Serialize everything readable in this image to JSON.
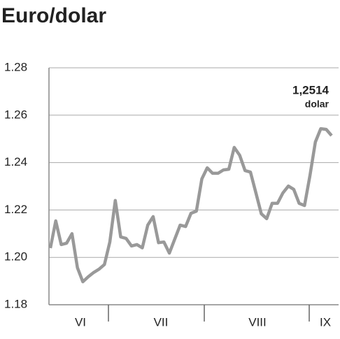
{
  "chart_data": {
    "type": "line",
    "title": "Euro/dolar",
    "month_labels": [
      "VI",
      "VII",
      "VIII",
      "IX"
    ],
    "values": [
      1.2039,
      1.2154,
      1.2054,
      1.206,
      1.21,
      1.1956,
      1.1897,
      1.1918,
      1.1936,
      1.195,
      1.197,
      1.2065,
      1.224,
      1.2086,
      1.208,
      1.2048,
      1.2054,
      1.204,
      1.2136,
      1.2172,
      1.2062,
      1.2065,
      1.2018,
      1.2077,
      1.2136,
      1.213,
      1.2186,
      1.2195,
      1.2331,
      1.2378,
      1.2355,
      1.2355,
      1.2369,
      1.2372,
      1.2464,
      1.2431,
      1.2366,
      1.236,
      1.2272,
      1.2184,
      1.2163,
      1.2228,
      1.2228,
      1.2272,
      1.2301,
      1.2287,
      1.2228,
      1.2219,
      1.2346,
      1.2487,
      1.2543,
      1.254,
      1.2514
    ],
    "color": "#999999",
    "ylim": [
      1.18,
      1.28
    ],
    "yticks": [
      1.18,
      {
        "value": 1.2,
        "label": "1.20"
      },
      1.22,
      1.24,
      1.26,
      1.28
    ],
    "grid": true,
    "annotation": [
      "1,2514",
      "dolar"
    ]
  }
}
